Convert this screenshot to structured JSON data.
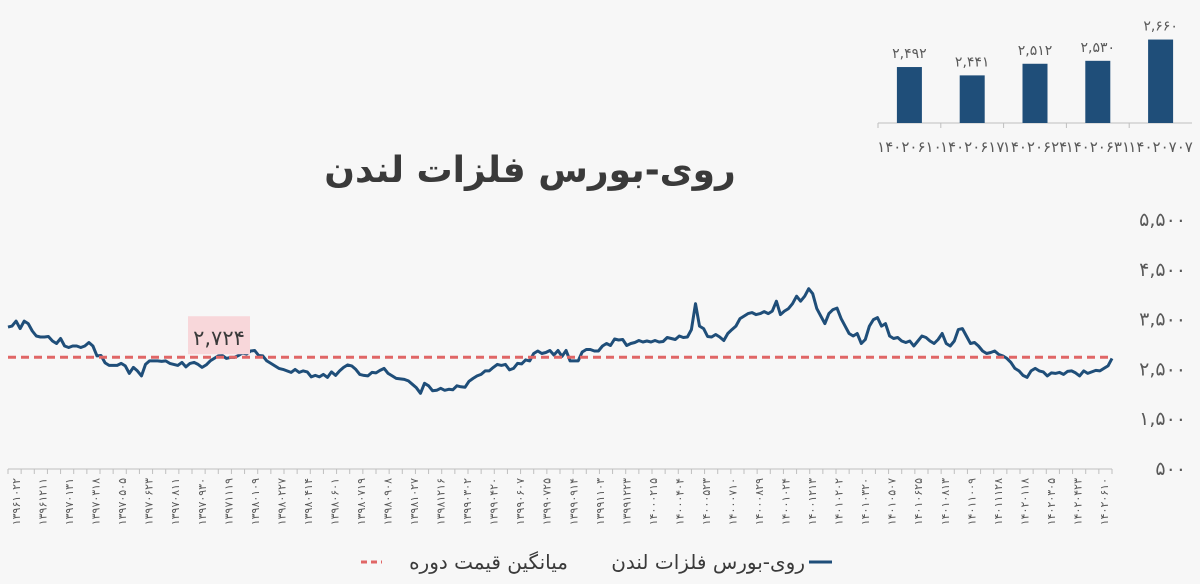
{
  "colors": {
    "background": "#f7f7f7",
    "series_line": "#1f4e79",
    "average_line": "#e06666",
    "bar_fill": "#1f4e79",
    "highlight_box": "#f8d7da",
    "axis_text": "#595959",
    "title_text": "#3a3a3a"
  },
  "chart_data": [
    {
      "type": "line",
      "title": "روی-بورس فلزات لندن",
      "xlabel": "",
      "ylabel": "",
      "ylim": [
        500,
        5500
      ],
      "y_ticks": [
        "۵,۵۰۰",
        "۴,۵۰۰",
        "۳,۵۰۰",
        "۲,۵۰۰",
        "۱,۵۰۰",
        "۵۰۰"
      ],
      "y_tick_values": [
        5500,
        4500,
        3500,
        2500,
        1500,
        500
      ],
      "y_axis_side": "right",
      "grid": false,
      "legend_position": "bottom",
      "x_tick_labels": [
        "۱۳۹۶۱۰۲۲",
        "۱۳۹۶۱۲۱۱",
        "۱۳۹۷۰۱۳۱",
        "۱۳۹۷۰۳۱۸",
        "۱۳۹۷۰۵۰۵",
        "۱۳۹۷۰۶۲۳",
        "۱۳۹۷۰۸۱۱",
        "۱۳۹۷۰۹۳۰",
        "۱۳۹۷۱۱۱۹",
        "۱۳۹۸۰۱۰۹",
        "۱۳۹۸۰۲۲۷",
        "۱۳۹۸۰۴۱۴",
        "۱۳۹۸۰۶۰۱",
        "۱۳۹۸۰۷۱۹",
        "۱۳۹۸۰۹۰۸",
        "۱۳۹۸۱۰۲۷",
        "۱۳۹۸۱۲۱۶",
        "۱۳۹۹۰۳۰۲",
        "۱۳۹۹۰۴۲۰",
        "۱۳۹۹۰۶۰۷",
        "۱۳۹۹۰۷۲۵",
        "۱۳۹۹۰۹۱۴",
        "۱۳۹۹۱۱۰۳",
        "۱۳۹۹۱۲۲۳",
        "۱۴۰۰۰۲۱۵",
        "۱۴۰۰۰۴۰۴",
        "۱۴۰۰۰۵۲۳",
        "۱۴۰۰۰۷۱۰",
        "۱۴۰۰۰۸۲۹",
        "۱۴۰۰۱۰۲۴",
        "۱۴۰۰۱۲۱۳",
        "۱۴۰۱۰۲۰۲",
        "۱۴۰۱۰۳۲۰",
        "۱۴۰۱۰۵۰۷",
        "۱۴۰۱۰۶۲۵",
        "۱۴۰۱۰۸۱۳",
        "۱۴۰۱۱۰۰۹",
        "۱۴۰۱۱۱۲۸",
        "۱۴۰۲۰۱۱۸",
        "۱۴۰۲۰۳۰۵",
        "۱۴۰۲۰۴۲۳",
        "۱۴۰۲۰۶۱۰"
      ],
      "average_value": 2724,
      "average_label": "۲,۷۲۴",
      "series": [
        {
          "name": "روی-بورس فلزات لندن",
          "values": [
            3330,
            3350,
            3450,
            3300,
            3450,
            3400,
            3250,
            3150,
            3130,
            3130,
            3140,
            3050,
            3000,
            3100,
            2950,
            2920,
            2950,
            2950,
            2920,
            2950,
            3020,
            2950,
            2750,
            2760,
            2610,
            2560,
            2560,
            2560,
            2600,
            2550,
            2400,
            2520,
            2450,
            2350,
            2580,
            2650,
            2650,
            2650,
            2640,
            2650,
            2600,
            2580,
            2560,
            2620,
            2530,
            2600,
            2620,
            2580,
            2520,
            2570,
            2650,
            2700,
            2750,
            2760,
            2700,
            2720,
            2720,
            2760,
            2810,
            2790,
            2850,
            2860,
            2760,
            2750,
            2650,
            2600,
            2550,
            2500,
            2480,
            2450,
            2420,
            2480,
            2420,
            2450,
            2430,
            2330,
            2360,
            2330,
            2380,
            2320,
            2430,
            2360,
            2450,
            2520,
            2570,
            2550,
            2480,
            2380,
            2360,
            2350,
            2420,
            2410,
            2460,
            2500,
            2400,
            2350,
            2300,
            2290,
            2280,
            2250,
            2180,
            2110,
            2000,
            2200,
            2150,
            2050,
            2060,
            2100,
            2060,
            2080,
            2070,
            2150,
            2130,
            2120,
            2240,
            2300,
            2350,
            2380,
            2450,
            2450,
            2520,
            2580,
            2560,
            2580,
            2470,
            2500,
            2600,
            2590,
            2670,
            2650,
            2800,
            2850,
            2800,
            2820,
            2860,
            2770,
            2860,
            2740,
            2860,
            2650,
            2650,
            2650,
            2830,
            2880,
            2880,
            2850,
            2850,
            2950,
            3000,
            2960,
            3090,
            3070,
            3080,
            2960,
            3000,
            3020,
            3060,
            3030,
            3050,
            3030,
            3060,
            3030,
            3040,
            3120,
            3100,
            3080,
            3150,
            3120,
            3130,
            3280,
            3800,
            3350,
            3300,
            3140,
            3130,
            3180,
            3130,
            3060,
            3200,
            3280,
            3350,
            3500,
            3550,
            3600,
            3620,
            3580,
            3600,
            3640,
            3600,
            3650,
            3850,
            3580,
            3650,
            3700,
            3800,
            3950,
            3850,
            3950,
            4100,
            4000,
            3700,
            3550,
            3400,
            3600,
            3680,
            3710,
            3500,
            3350,
            3200,
            3150,
            3200,
            3000,
            3080,
            3350,
            3480,
            3520,
            3350,
            3400,
            3150,
            3100,
            3120,
            3050,
            3020,
            3050,
            2950,
            3050,
            3150,
            3120,
            3050,
            3000,
            3080,
            3200,
            3000,
            2950,
            3050,
            3280,
            3300,
            3150,
            3000,
            3020,
            2950,
            2850,
            2800,
            2820,
            2850,
            2780,
            2750,
            2700,
            2620,
            2500,
            2450,
            2360,
            2320,
            2450,
            2500,
            2450,
            2430,
            2350,
            2410,
            2400,
            2420,
            2380,
            2440,
            2450,
            2410,
            2350,
            2450,
            2400,
            2430,
            2460,
            2450,
            2500,
            2550,
            2700
          ]
        }
      ]
    },
    {
      "type": "bar",
      "title": "",
      "categories": [
        "۱۴۰۲۰۷۰۷",
        "۱۴۰۲۰۶۳۱",
        "۱۴۰۲۰۶۲۴",
        "۱۴۰۲۰۶۱۷",
        "۱۴۰۲۰۶۱۰"
      ],
      "values": [
        2660,
        2530,
        2512,
        2441,
        2492
      ],
      "value_labels": [
        "۲,۶۶۰",
        "۲,۵۳۰",
        "۲,۵۱۲",
        "۲,۴۴۱",
        "۲,۴۹۲"
      ],
      "ylim": [
        2150,
        2700
      ],
      "grid": false
    }
  ],
  "legend": {
    "line_label": "روی-بورس فلزات لندن",
    "average_label": "میانگین قیمت دوره"
  }
}
